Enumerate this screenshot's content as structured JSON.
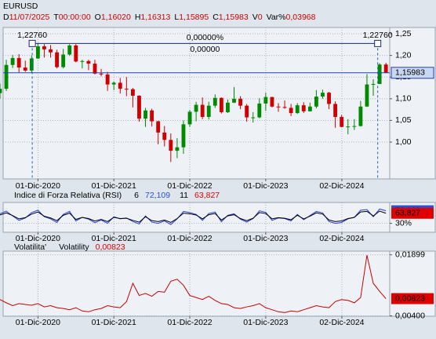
{
  "header": {
    "symbol": "EURUSD",
    "fields": [
      {
        "key": "D",
        "value": "11/07/2025"
      },
      {
        "key": "T",
        "value": "00:00:00"
      },
      {
        "key": "O",
        "value": "1,16020"
      },
      {
        "key": "H",
        "value": "1,16313"
      },
      {
        "key": "L",
        "value": "1,15895"
      },
      {
        "key": "C",
        "value": "1,15983"
      },
      {
        "key": "V",
        "value": "0"
      },
      {
        "key": "Var%",
        "value": "0,03968"
      }
    ]
  },
  "chart_data": [
    {
      "type": "candlestick",
      "x": [
        5,
        6,
        7,
        8,
        9,
        10,
        11,
        12,
        13,
        14,
        15,
        16,
        17,
        18,
        19,
        20,
        21,
        22,
        23,
        24,
        25,
        26,
        27,
        28,
        29,
        30,
        31,
        32,
        33,
        34,
        35,
        36,
        37,
        38,
        39,
        40,
        41,
        42,
        43,
        44,
        45,
        46,
        47,
        48,
        49,
        50,
        51,
        52,
        53,
        54,
        55,
        56,
        57,
        58,
        59,
        60,
        61,
        62,
        63,
        64,
        65,
        66
      ],
      "open": [
        1.113,
        1.123,
        1.178,
        1.194,
        1.172,
        1.165,
        1.193,
        1.221,
        1.214,
        1.207,
        1.173,
        1.202,
        1.223,
        1.186,
        1.187,
        1.181,
        1.158,
        1.156,
        1.133,
        1.137,
        1.123,
        1.122,
        1.107,
        1.054,
        1.073,
        1.048,
        1.022,
        1.005,
        0.98,
        0.988,
        1.041,
        1.07,
        1.086,
        1.058,
        1.084,
        1.102,
        1.069,
        1.091,
        1.1,
        1.084,
        1.057,
        1.057,
        1.089,
        1.104,
        1.082,
        1.081,
        1.079,
        1.067,
        1.085,
        1.071,
        1.082,
        1.105,
        1.114,
        1.088,
        1.058,
        1.035,
        1.036,
        1.037,
        1.082,
        1.133,
        1.134,
        1.179
      ],
      "high": [
        1.135,
        1.19,
        1.201,
        1.203,
        1.188,
        1.2,
        1.2276,
        1.226,
        1.224,
        1.213,
        1.215,
        1.226,
        1.226,
        1.19,
        1.19,
        1.19,
        1.169,
        1.162,
        1.14,
        1.148,
        1.15,
        1.125,
        1.108,
        1.079,
        1.077,
        1.049,
        1.037,
        1.02,
        1.009,
        1.05,
        1.074,
        1.093,
        1.103,
        1.093,
        1.11,
        1.103,
        1.098,
        1.127,
        1.106,
        1.088,
        1.069,
        1.101,
        1.114,
        1.104,
        1.09,
        1.096,
        1.088,
        1.09,
        1.092,
        1.091,
        1.12,
        1.121,
        1.116,
        1.094,
        1.063,
        1.053,
        1.053,
        1.095,
        1.157,
        1.145,
        1.182,
        1.183
      ],
      "low": [
        1.1,
        1.118,
        1.171,
        1.161,
        1.162,
        1.16,
        1.192,
        1.195,
        1.195,
        1.17,
        1.17,
        1.199,
        1.184,
        1.17,
        1.166,
        1.156,
        1.152,
        1.118,
        1.12,
        1.112,
        1.106,
        1.08,
        1.047,
        1.035,
        1.036,
        0.995,
        0.99,
        0.954,
        0.963,
        0.973,
        1.035,
        1.048,
        1.053,
        1.052,
        1.079,
        1.066,
        1.067,
        1.09,
        1.076,
        1.047,
        1.045,
        1.055,
        1.072,
        1.08,
        1.07,
        1.077,
        1.06,
        1.065,
        1.067,
        1.071,
        1.078,
        1.1,
        1.076,
        1.033,
        1.034,
        1.018,
        1.028,
        1.036,
        1.081,
        1.107,
        1.134,
        1.159
      ],
      "close": [
        1.123,
        1.178,
        1.194,
        1.172,
        1.165,
        1.193,
        1.221,
        1.214,
        1.207,
        1.173,
        1.202,
        1.223,
        1.186,
        1.187,
        1.181,
        1.158,
        1.156,
        1.133,
        1.137,
        1.123,
        1.122,
        1.107,
        1.054,
        1.073,
        1.048,
        1.022,
        1.005,
        0.98,
        0.988,
        1.041,
        1.07,
        1.086,
        1.058,
        1.084,
        1.102,
        1.069,
        1.091,
        1.1,
        1.084,
        1.057,
        1.057,
        1.089,
        1.104,
        1.082,
        1.081,
        1.079,
        1.067,
        1.085,
        1.071,
        1.082,
        1.105,
        1.114,
        1.088,
        1.058,
        1.035,
        1.036,
        1.037,
        1.082,
        1.133,
        1.134,
        1.179,
        1.15983
      ],
      "up_color": "#008a00",
      "down_color": "#d00000",
      "xlim": [
        5.5,
        66.6
      ],
      "xticks": [
        {
          "value": 11,
          "label": "01-Dic-2020"
        },
        {
          "value": 23,
          "label": "01-Dic-2021"
        },
        {
          "value": 35,
          "label": "01-Dic-2022"
        },
        {
          "value": 47,
          "label": "01-Dic-2023"
        },
        {
          "value": 59.03,
          "label": "02-Dic-2024"
        }
      ],
      "ylim": [
        0.915,
        1.2645
      ],
      "yticks": [
        {
          "value": 1.25,
          "label": "1,25"
        },
        {
          "value": 1.2,
          "label": "1,20"
        },
        {
          "value": 1.15,
          "label": "1,15"
        },
        {
          "value": 1.1,
          "label": "1,10"
        },
        {
          "value": 1.05,
          "label": "1,05"
        },
        {
          "value": 1.0,
          "label": "1,00"
        }
      ],
      "grid": true,
      "last_price": {
        "value": 1.15983,
        "label": "1,15983",
        "color": "#1f3fbf"
      },
      "measure": {
        "y": 1.2276,
        "x_start": 10.1,
        "x_end": 64.7,
        "start_label": "1,22760",
        "end_label": "1,22760",
        "percent": "0,00000%",
        "difference": "0,00000"
      }
    },
    {
      "type": "line",
      "title": "Indice di Forza Relativa (RSI)",
      "x": [
        5,
        6,
        7,
        8,
        9,
        10,
        11,
        12,
        13,
        14,
        15,
        16,
        17,
        18,
        19,
        20,
        21,
        22,
        23,
        24,
        25,
        26,
        27,
        28,
        29,
        30,
        31,
        32,
        33,
        34,
        35,
        36,
        37,
        38,
        39,
        40,
        41,
        42,
        43,
        44,
        45,
        46,
        47,
        48,
        49,
        50,
        51,
        52,
        53,
        54,
        55,
        56,
        57,
        58,
        59,
        60,
        61,
        62,
        63,
        64,
        65,
        66
      ],
      "series": [
        {
          "name": "6",
          "color": "#2a3fe0",
          "label_color": "#2a50d8",
          "last_label": "72,109",
          "values": [
            62,
            71,
            55,
            40,
            48,
            66,
            74,
            52,
            45,
            33,
            60,
            70,
            38,
            50,
            44,
            32,
            41,
            30,
            52,
            45,
            48,
            36,
            28,
            55,
            34,
            30,
            38,
            26,
            45,
            70,
            66,
            60,
            40,
            63,
            68,
            35,
            57,
            62,
            44,
            34,
            46,
            72,
            67,
            40,
            48,
            46,
            38,
            60,
            42,
            56,
            70,
            65,
            36,
            30,
            33,
            45,
            50,
            74,
            76,
            52,
            78,
            72.109
          ]
        },
        {
          "name": "11",
          "color": "#000000",
          "label_color": "#e00000",
          "last_label": "63,827",
          "values": [
            58,
            65,
            56,
            45,
            49,
            61,
            68,
            54,
            48,
            39,
            57,
            64,
            43,
            50,
            46,
            38,
            43,
            36,
            50,
            46,
            47,
            40,
            34,
            52,
            39,
            36,
            41,
            33,
            46,
            64,
            62,
            58,
            45,
            59,
            63,
            41,
            55,
            59,
            46,
            39,
            47,
            66,
            63,
            45,
            49,
            47,
            42,
            57,
            45,
            54,
            65,
            61,
            41,
            36,
            38,
            46,
            50,
            68,
            70,
            55,
            71,
            63.827
          ]
        }
      ],
      "xlim": [
        5.5,
        66.6
      ],
      "xticks": [
        {
          "value": 11,
          "label": "01-Dic-2020"
        },
        {
          "value": 23,
          "label": "01-Dic-2021"
        },
        {
          "value": 35,
          "label": "01-Dic-2022"
        },
        {
          "value": 47,
          "label": "01-Dic-2023"
        },
        {
          "value": 59.03,
          "label": "02-Dic-2024"
        }
      ],
      "ylim": [
        0,
        100
      ],
      "yticks": [
        {
          "value": 30,
          "label": "30%"
        }
      ],
      "grid": true
    },
    {
      "type": "line",
      "title": "Volatilita'",
      "x": [
        5,
        6,
        7,
        8,
        9,
        10,
        11,
        12,
        13,
        14,
        15,
        16,
        17,
        18,
        19,
        20,
        21,
        22,
        23,
        24,
        25,
        26,
        27,
        28,
        29,
        30,
        31,
        32,
        33,
        34,
        35,
        36,
        37,
        38,
        39,
        40,
        41,
        42,
        43,
        44,
        45,
        46,
        47,
        48,
        49,
        50,
        51,
        52,
        53,
        54,
        55,
        56,
        57,
        58,
        59,
        60,
        61,
        62,
        63,
        64,
        65,
        66
      ],
      "series": [
        {
          "name": "Volatility",
          "color": "#c80000",
          "label_color": "#e00000",
          "last_label": "0,00823",
          "values": [
            0.008,
            0.0072,
            0.0065,
            0.007,
            0.0068,
            0.0066,
            0.007,
            0.0062,
            0.0065,
            0.006,
            0.0058,
            0.0055,
            0.006,
            0.0052,
            0.005,
            0.0055,
            0.0058,
            0.0065,
            0.0062,
            0.006,
            0.0075,
            0.012,
            0.009,
            0.0095,
            0.0088,
            0.01,
            0.0098,
            0.0125,
            0.013,
            0.0115,
            0.009,
            0.0085,
            0.008,
            0.0088,
            0.0078,
            0.007,
            0.0068,
            0.006,
            0.0058,
            0.0062,
            0.0065,
            0.007,
            0.006,
            0.0055,
            0.005,
            0.0048,
            0.0052,
            0.005,
            0.0055,
            0.006,
            0.0065,
            0.0062,
            0.006,
            0.0075,
            0.008,
            0.0078,
            0.0072,
            0.0085,
            0.0189,
            0.012,
            0.01,
            0.00823
          ]
        }
      ],
      "xlim": [
        5.5,
        66.6
      ],
      "xticks": [
        {
          "value": 11,
          "label": "01-Dic-2020"
        },
        {
          "value": 23,
          "label": "01-Dic-2021"
        },
        {
          "value": 35,
          "label": "01-Dic-2022"
        },
        {
          "value": 47,
          "label": "01-Dic-2023"
        },
        {
          "value": 59.03,
          "label": "02-Dic-2024"
        }
      ],
      "ylim": [
        0.0039,
        0.0199
      ],
      "yticks": [
        {
          "value": 0.01899,
          "label": "0,01899"
        },
        {
          "value": 0.004,
          "label": "0,00400"
        }
      ],
      "grid": true
    }
  ]
}
